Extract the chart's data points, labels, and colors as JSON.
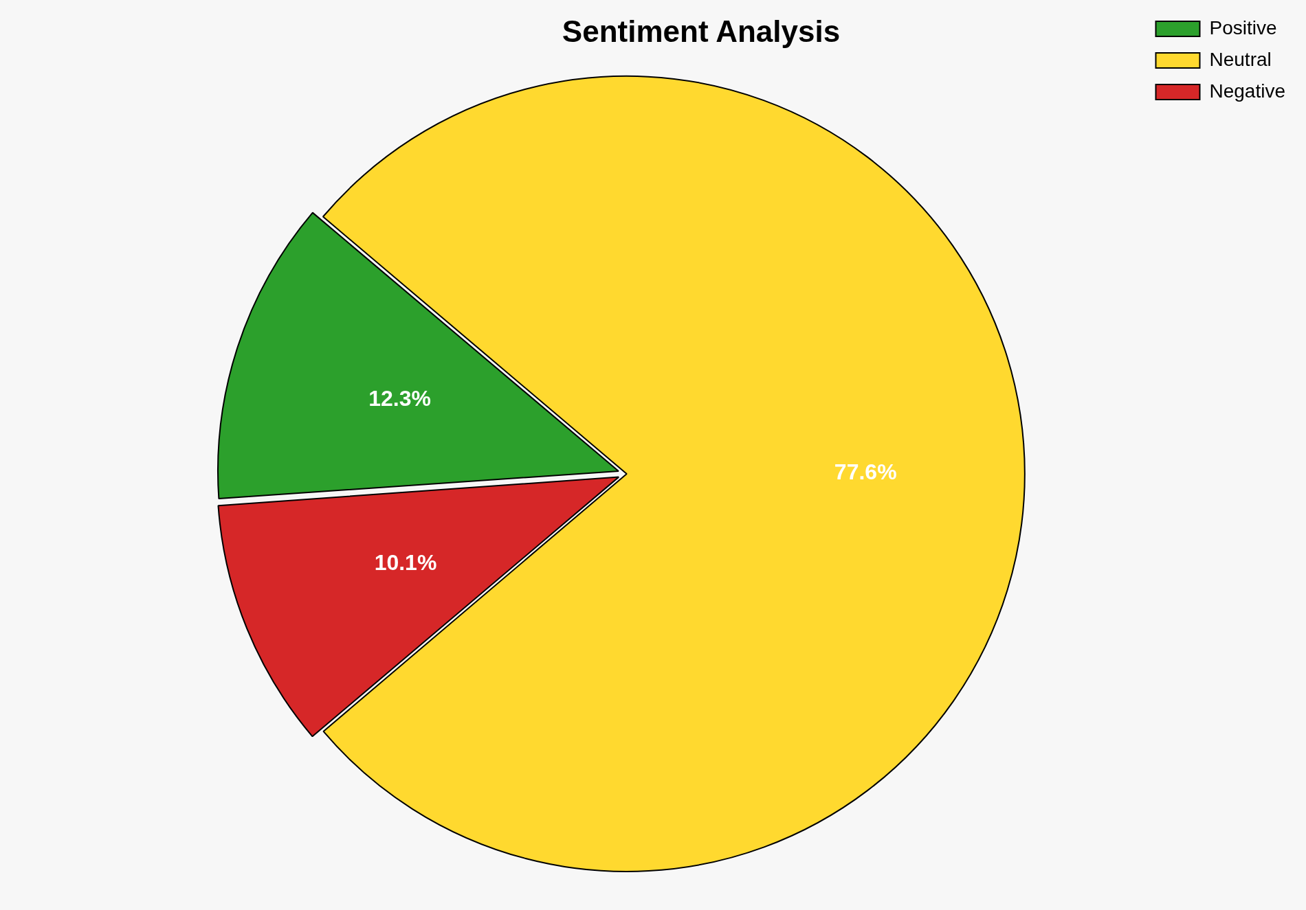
{
  "chart_data": {
    "type": "pie",
    "title": "Sentiment Analysis",
    "categories": [
      "Positive",
      "Neutral",
      "Negative"
    ],
    "values": [
      12.3,
      77.6,
      10.1
    ],
    "colors": [
      "#2ca02c",
      "#ffd92f",
      "#d62728"
    ],
    "value_labels": [
      "12.3%",
      "77.6%",
      "10.1%"
    ],
    "legend": "top right"
  }
}
